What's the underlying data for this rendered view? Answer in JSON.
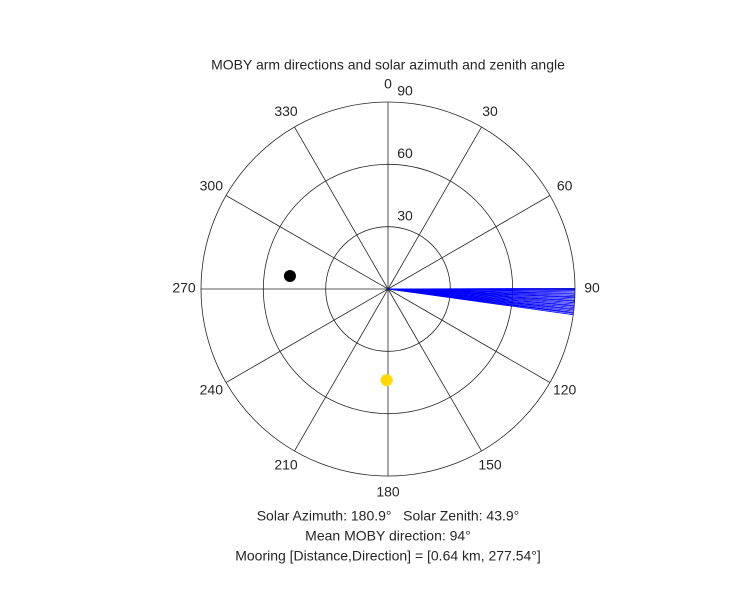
{
  "chart_data": {
    "type": "polar",
    "title": "MOBY arm directions and solar azimuth and zenith angle",
    "theta_direction": "clockwise",
    "theta_zero": "top",
    "rlim": [
      0,
      90
    ],
    "rticks": [
      30,
      60,
      90
    ],
    "thetaticks": [
      0,
      30,
      60,
      90,
      120,
      150,
      180,
      210,
      240,
      270,
      300,
      330
    ],
    "series": [
      {
        "marker": "line",
        "color": "#0000ff",
        "theta": [
          89.8,
          90.2,
          90.5,
          90.9,
          91.3,
          91.6,
          92.0,
          92.4,
          92.7,
          93.1,
          93.5,
          93.8,
          94.2,
          94.6,
          95.0,
          95.3,
          95.7,
          96.1,
          96.4,
          96.8,
          97.2,
          97.5,
          97.9
        ],
        "r": [
          90,
          90,
          90,
          90,
          90,
          90,
          90,
          90,
          90,
          90,
          90,
          90,
          90,
          90,
          90,
          90,
          90,
          90,
          90,
          90,
          90,
          90,
          90
        ]
      },
      {
        "marker": "dot",
        "color": "#000000",
        "theta": [
          277.54
        ],
        "r": [
          47.6
        ]
      },
      {
        "marker": "sun",
        "color": "#ffd700",
        "theta": [
          180.9
        ],
        "r": [
          43.9
        ]
      }
    ],
    "annotations": [
      "Solar Azimuth: 180.9°   Solar Zenith: 43.9°",
      "Mean MOBY direction: 94°",
      "Mooring [Distance,Direction] = [0.64 km, 277.54°]"
    ]
  }
}
